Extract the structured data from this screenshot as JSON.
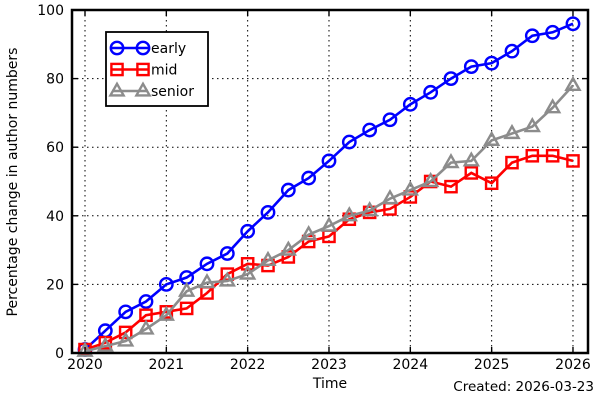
{
  "chart_data": {
    "type": "line",
    "title": "",
    "xlabel": "Time",
    "ylabel": "Percentage change in author numbers",
    "xlim": [
      2019.84,
      2026.18
    ],
    "ylim": [
      0,
      100
    ],
    "x_ticks": [
      2020,
      2021,
      2022,
      2023,
      2024,
      2025,
      2026
    ],
    "y_ticks": [
      0,
      20,
      40,
      60,
      80,
      100
    ],
    "grid": "dotted",
    "legend_position": "top-left",
    "legend_numpoints": 2,
    "x": [
      2020.0,
      2020.25,
      2020.5,
      2020.75,
      2021.0,
      2021.25,
      2021.5,
      2021.75,
      2022.0,
      2022.25,
      2022.5,
      2022.75,
      2023.0,
      2023.25,
      2023.5,
      2023.75,
      2024.0,
      2024.25,
      2024.5,
      2024.75,
      2025.0,
      2025.25,
      2025.5,
      2025.75,
      2026.0
    ],
    "series": [
      {
        "name": "early",
        "color": "#0000ff",
        "marker": "circle",
        "values": [
          1,
          6.5,
          12,
          15,
          20,
          22,
          26,
          29,
          35.5,
          41,
          47.5,
          51,
          56,
          61.5,
          65,
          68,
          72.5,
          76,
          80,
          83.5,
          84.5,
          88,
          92.5,
          93.5,
          96
        ]
      },
      {
        "name": "mid",
        "color": "#ff0000",
        "marker": "square",
        "values": [
          1,
          3,
          6,
          11,
          12,
          13,
          17.5,
          23,
          26,
          25.5,
          28,
          32.5,
          34,
          39,
          41,
          42,
          45.5,
          50,
          48.5,
          52.5,
          49.5,
          55.5,
          57.5,
          57.5,
          56
        ]
      },
      {
        "name": "senior",
        "color": "#8c8c8c",
        "marker": "triangle",
        "values": [
          0.5,
          2,
          3.5,
          7,
          11,
          18,
          20.5,
          21,
          23,
          27,
          30,
          34.5,
          37,
          40,
          41.5,
          45,
          47.5,
          50,
          55.5,
          56,
          62,
          64,
          66,
          71.5,
          78
        ]
      }
    ],
    "annotation": {
      "text": "Created: 2026-03-23",
      "color": "#2ca02c",
      "position": "bottom-right"
    },
    "frame_color": "#000000",
    "background_color": "#ffffff"
  }
}
